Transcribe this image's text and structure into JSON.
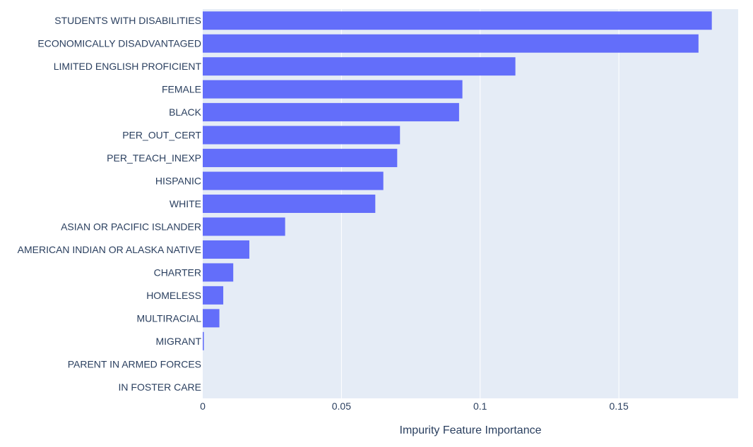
{
  "chart_data": {
    "type": "bar",
    "orientation": "horizontal",
    "categories": [
      "STUDENTS WITH DISABILITIES",
      "ECONOMICALLY DISADVANTAGED",
      "LIMITED ENGLISH PROFICIENT",
      "FEMALE",
      "BLACK",
      "PER_OUT_CERT",
      "PER_TEACH_INEXP",
      "HISPANIC",
      "WHITE",
      "ASIAN OR PACIFIC ISLANDER",
      "AMERICAN INDIAN OR ALASKA NATIVE",
      "CHARTER",
      "HOMELESS",
      "MULTIRACIAL",
      "MIGRANT",
      "PARENT IN ARMED FORCES",
      "IN FOSTER CARE"
    ],
    "values": [
      0.1835,
      0.1787,
      0.1127,
      0.0936,
      0.0924,
      0.0711,
      0.0701,
      0.0651,
      0.0622,
      0.0297,
      0.0168,
      0.011,
      0.0074,
      0.006,
      0.0004,
      0.0,
      0.0
    ],
    "xlabel": "Impurity Feature Importance",
    "ylabel": "",
    "xlim": [
      0,
      0.193
    ],
    "x_ticks": [
      0,
      0.05,
      0.1,
      0.15
    ],
    "x_tick_labels": [
      "0",
      "0.05",
      "0.1",
      "0.15"
    ],
    "grid": true,
    "colors": {
      "bar": "#636efa",
      "plot_background": "#e5ecf6",
      "gridline": "#ffffff",
      "text": "#2a3f5f"
    }
  }
}
